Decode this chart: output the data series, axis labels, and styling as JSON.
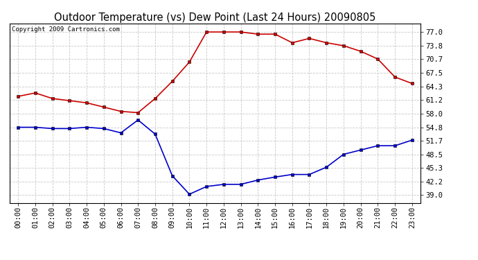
{
  "title": "Outdoor Temperature (vs) Dew Point (Last 24 Hours) 20090805",
  "copyright": "Copyright 2009 Cartronics.com",
  "x_labels": [
    "00:00",
    "01:00",
    "02:00",
    "03:00",
    "04:00",
    "05:00",
    "06:00",
    "07:00",
    "08:00",
    "09:00",
    "10:00",
    "11:00",
    "12:00",
    "13:00",
    "14:00",
    "15:00",
    "16:00",
    "17:00",
    "18:00",
    "19:00",
    "20:00",
    "21:00",
    "22:00",
    "23:00"
  ],
  "temp_data": [
    62.0,
    62.8,
    61.5,
    61.0,
    60.5,
    59.5,
    58.5,
    58.2,
    61.5,
    65.5,
    70.0,
    77.0,
    77.0,
    77.0,
    76.5,
    76.5,
    74.5,
    75.5,
    74.5,
    73.8,
    72.5,
    70.7,
    66.5,
    65.0
  ],
  "dew_data": [
    54.8,
    54.8,
    54.5,
    54.5,
    54.8,
    54.5,
    53.5,
    56.5,
    53.2,
    43.5,
    39.2,
    41.0,
    41.5,
    41.5,
    42.5,
    43.2,
    43.8,
    43.8,
    45.5,
    48.5,
    49.5,
    50.5,
    50.5,
    51.8
  ],
  "temp_color": "#cc0000",
  "dew_color": "#0000cc",
  "bg_color": "#ffffff",
  "grid_color": "#c8c8c8",
  "yticks": [
    39.0,
    42.2,
    45.3,
    48.5,
    51.7,
    54.8,
    58.0,
    61.2,
    64.3,
    67.5,
    70.7,
    73.8,
    77.0
  ],
  "ylim": [
    37.2,
    79.0
  ],
  "title_fontsize": 10.5,
  "copyright_fontsize": 6.5,
  "tick_fontsize": 7.5,
  "marker": "s",
  "marker_size": 3,
  "linewidth": 1.2
}
